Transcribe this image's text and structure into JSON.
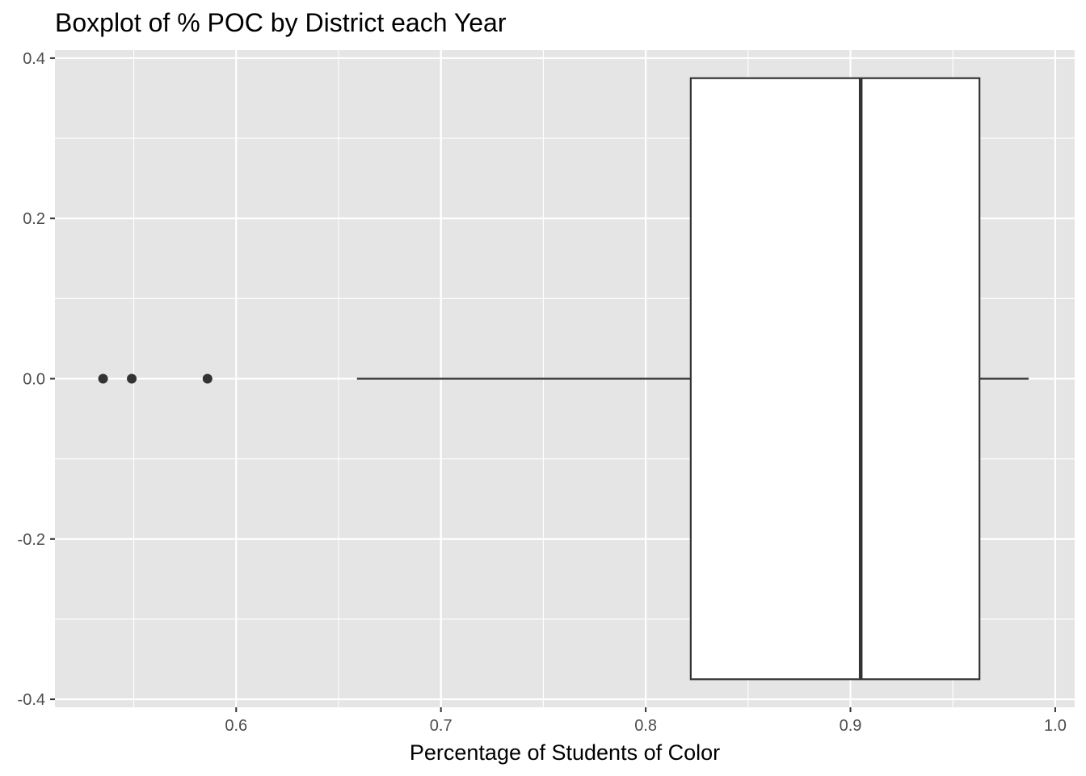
{
  "chart_data": {
    "type": "boxplot",
    "title": "Boxplot of % POC by District each Year",
    "xlabel": "Percentage of Students of Color",
    "ylabel": "",
    "xlim": [
      0.5115,
      1.0095
    ],
    "ylim": [
      -0.41,
      0.41
    ],
    "x_ticks": [
      {
        "value": 0.6,
        "label": "0.6"
      },
      {
        "value": 0.7,
        "label": "0.7"
      },
      {
        "value": 0.8,
        "label": "0.8"
      },
      {
        "value": 0.9,
        "label": "0.9"
      },
      {
        "value": 1.0,
        "label": "1.0"
      }
    ],
    "x_minor_ticks": [
      0.55,
      0.65,
      0.75,
      0.85,
      0.95
    ],
    "y_ticks": [
      {
        "value": 0.4,
        "label": "0.4"
      },
      {
        "value": 0.2,
        "label": "0.2"
      },
      {
        "value": 0.0,
        "label": "0.0"
      },
      {
        "value": -0.2,
        "label": "-0.2"
      },
      {
        "value": -0.4,
        "label": "-0.4"
      }
    ],
    "y_minor_ticks": [
      0.3,
      0.1,
      -0.1,
      -0.3
    ],
    "box": {
      "y_center": 0.0,
      "y_half_width": 0.375,
      "whisker_low": 0.659,
      "q1": 0.822,
      "median": 0.905,
      "q3": 0.963,
      "whisker_high": 0.987
    },
    "outliers": [
      0.535,
      0.549,
      0.586
    ],
    "grid": true,
    "legend": "none",
    "colors": {
      "panel": "#e5e5e5",
      "grid": "#ffffff",
      "box_fill": "#ffffff",
      "box_stroke": "#333333",
      "point": "#333333",
      "tick_label": "#4d4d4d"
    }
  }
}
